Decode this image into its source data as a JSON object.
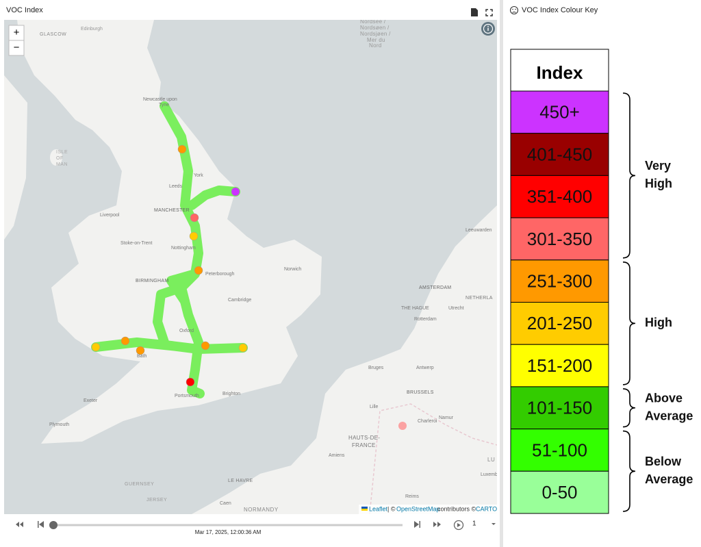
{
  "header": {
    "title": "VOC Index"
  },
  "map": {
    "zoom_in": "+",
    "zoom_out": "−",
    "labels": [
      "GLASCOW",
      "Edinburgh",
      "Newcastle upon",
      "Tyne",
      "ISLE",
      "OF",
      "MAN",
      "Leeds",
      "York",
      "MANCHESTER",
      "Liverpool",
      "Stoke-on-Trent",
      "Nottingham",
      "BIRMINGHAM",
      "Peterborough",
      "Norwich",
      "Cambridge",
      "Oxford",
      "Bath",
      "Exeter",
      "Plymouth",
      "Portsmouth",
      "Brighton",
      "Nordsee /",
      "Nordsøen /",
      "Nordsjøen /",
      "Mer du",
      "Nord",
      "Leeuwarden",
      "AMSTERDAM",
      "NETHERLA",
      "THE HAGUE",
      "Utrecht",
      "Rotterdam",
      "Bruges",
      "Antwerp",
      "BRUSSELS",
      "Lille",
      "Charleroi",
      "Namur",
      "HAUTS-DE-",
      "FRANCE",
      "Amiens",
      "LE HAVRE",
      "NORMANDY",
      "GUERNSEY",
      "JERSEY",
      "Caen",
      "Reims",
      "LU",
      "Luxembo"
    ],
    "attribution": {
      "leaflet": "Leaflet",
      "sep": "| ©",
      "osm": "OpenStreetMap",
      "mid": "contributors ©",
      "carto": "CARTO"
    }
  },
  "timeline": {
    "timestamp": "Mar 17, 2025, 12:00:36 AM",
    "speed": "1"
  },
  "key": {
    "title": "VOC Index Colour Key",
    "header": "Index",
    "rows": [
      {
        "label": "450+",
        "color": "#cc33ff"
      },
      {
        "label": "401-450",
        "color": "#990000"
      },
      {
        "label": "351-400",
        "color": "#ff0000"
      },
      {
        "label": "301-350",
        "color": "#ff6666"
      },
      {
        "label": "251-300",
        "color": "#ff9900"
      },
      {
        "label": "201-250",
        "color": "#ffcc00"
      },
      {
        "label": "151-200",
        "color": "#ffff00"
      },
      {
        "label": "101-150",
        "color": "#33cc00"
      },
      {
        "label": "51-100",
        "color": "#33ff00"
      },
      {
        "label": "0-50",
        "color": "#99ff99"
      }
    ],
    "groups": [
      {
        "lines": [
          "Very",
          "High"
        ]
      },
      {
        "lines": [
          "High"
        ]
      },
      {
        "lines": [
          "Above",
          "Average"
        ]
      },
      {
        "lines": [
          "Below",
          "Average"
        ]
      }
    ]
  }
}
